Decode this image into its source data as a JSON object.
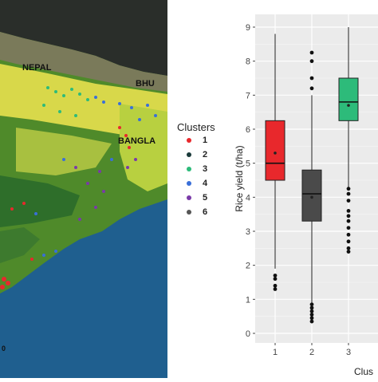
{
  "map": {
    "labels": [
      "NEPAL",
      "BHU",
      "BANGLA"
    ],
    "scale_text": "0"
  },
  "legend": {
    "title": "Clusters",
    "items": [
      {
        "label": "1",
        "color": "#e8282c"
      },
      {
        "label": "2",
        "color": "#1a3a3a"
      },
      {
        "label": "3",
        "color": "#2dbb7a"
      },
      {
        "label": "4",
        "color": "#3a6fd8"
      },
      {
        "label": "5",
        "color": "#7a3aa8"
      },
      {
        "label": "6",
        "color": "#555555"
      }
    ]
  },
  "chart_data": {
    "type": "box",
    "title": "",
    "xlabel": "Clus",
    "ylabel": "Rice yield (t/ha)",
    "ylim": [
      0,
      9
    ],
    "yticks": [
      "0",
      "1",
      "2",
      "3",
      "4",
      "5",
      "6",
      "7",
      "8",
      "9"
    ],
    "grid": true,
    "boxes": [
      {
        "category": "1",
        "color": "#e8282c",
        "whisker_low": 1.9,
        "q1": 4.5,
        "median": 5.0,
        "q3": 6.25,
        "whisker_high": 8.8,
        "mean": 5.3,
        "outliers": [
          1.3,
          1.4,
          1.6,
          1.7
        ]
      },
      {
        "category": "2",
        "color": "#4a4a4a",
        "whisker_low": 0.9,
        "q1": 3.3,
        "median": 4.1,
        "q3": 4.8,
        "whisker_high": 7.0,
        "mean": 4.0,
        "outliers": [
          0.35,
          0.45,
          0.55,
          0.65,
          0.75,
          0.85,
          7.2,
          7.5,
          8.0,
          8.25
        ]
      },
      {
        "category": "3",
        "color": "#2dbb7a",
        "whisker_low": 4.3,
        "q1": 6.25,
        "median": 6.8,
        "q3": 7.5,
        "whisker_high": 9.0,
        "mean": 6.7,
        "outliers": [
          2.4,
          2.5,
          2.7,
          2.9,
          3.1,
          3.3,
          3.45,
          3.6,
          3.9,
          4.1,
          4.25
        ]
      }
    ]
  }
}
